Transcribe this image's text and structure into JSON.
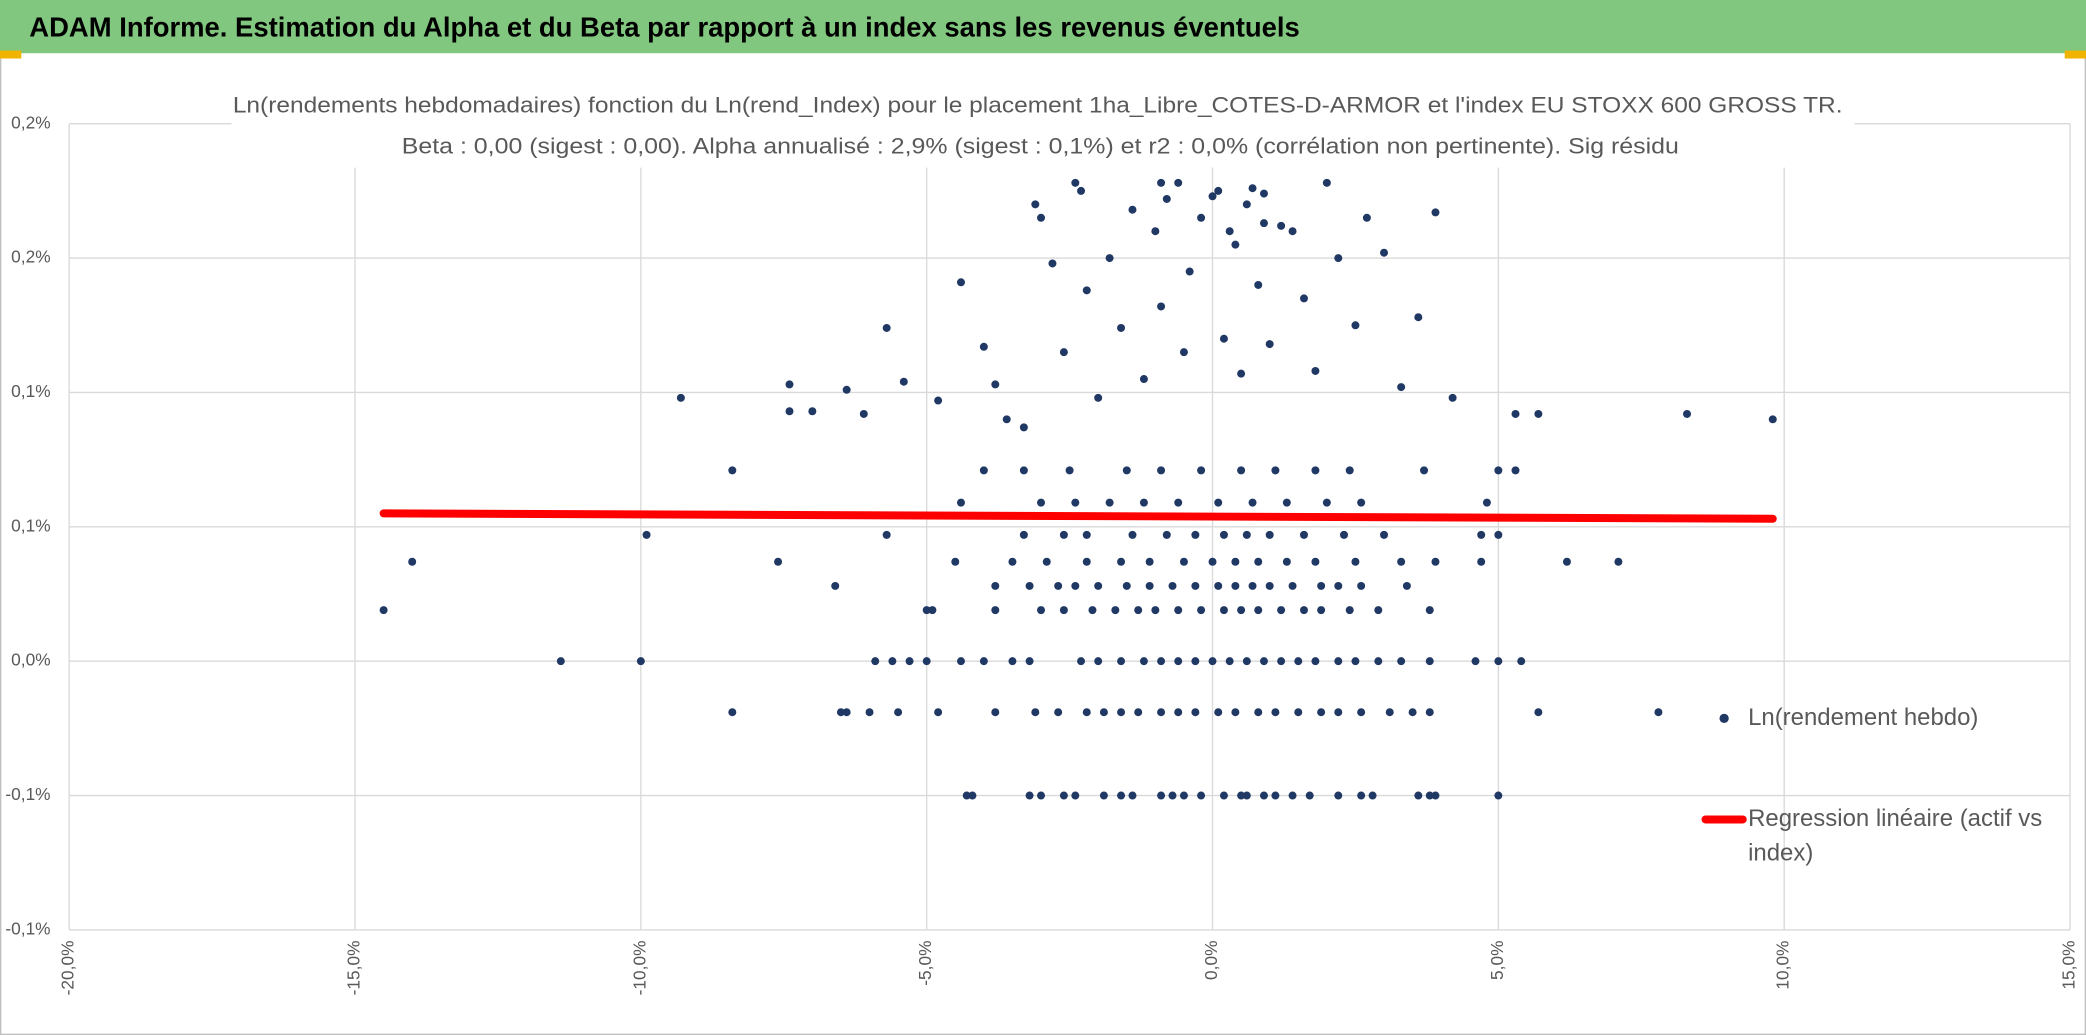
{
  "header": {
    "title": "ADAM Informe. Estimation du Alpha et du Beta par rapport à un index sans les revenus éventuels"
  },
  "chart_data": {
    "type": "scatter",
    "title": "Ln(rendements hebdomadaires) fonction du Ln(rend_Index) pour le placement 1ha_Libre_COTES-D-ARMOR et l'index EU STOXX 600 GROSS TR.",
    "subtitle": "Beta : 0,00 (sigest : 0,00). Alpha annualisé : 2,9% (sigest : 0,1%) et r2 : 0,0% (corrélation non pertinente). Sig résidu",
    "xlim": [
      -20,
      15
    ],
    "xticks": [
      {
        "value": -20,
        "label": "-20,0%"
      },
      {
        "value": -15,
        "label": "-15,0%"
      },
      {
        "value": -10,
        "label": "-10,0%"
      },
      {
        "value": -5,
        "label": "-5,0%"
      },
      {
        "value": 0,
        "label": "0,0%"
      },
      {
        "value": 5,
        "label": "5,0%"
      },
      {
        "value": 10,
        "label": "10,0%"
      },
      {
        "value": 15,
        "label": "15,0%"
      }
    ],
    "ylim": [
      -0.1,
      0.2
    ],
    "yticks": [
      {
        "value": -0.1,
        "label": "-0,1%"
      },
      {
        "value": -0.05,
        "label": "-0,1%"
      },
      {
        "value": 0,
        "label": "0,0%"
      },
      {
        "value": 0.05,
        "label": "0,1%"
      },
      {
        "value": 0.1,
        "label": "0,1%"
      },
      {
        "value": 0.15,
        "label": "0,2%"
      },
      {
        "value": 0.2,
        "label": "0,2%"
      }
    ],
    "grid": true,
    "legend": "right",
    "series": [
      {
        "name": "Ln(rendement hebdo)",
        "color": "#203864",
        "x": [
          -4.3,
          -4.2,
          -3.2,
          -3.0,
          -2.6,
          -2.4,
          -1.9,
          -1.6,
          -1.4,
          -0.9,
          -0.7,
          -0.5,
          -0.2,
          0.2,
          0.5,
          0.6,
          0.9,
          1.1,
          1.4,
          1.7,
          2.2,
          2.6,
          2.8,
          3.6,
          3.8,
          3.9,
          5.0,
          -8.4,
          -6.5,
          -6.4,
          -6.0,
          -5.5,
          -4.8,
          -3.8,
          -3.1,
          -2.7,
          -2.2,
          -1.9,
          -1.6,
          -1.3,
          -0.9,
          -0.6,
          -0.3,
          0.1,
          0.4,
          0.8,
          1.1,
          1.5,
          1.9,
          2.2,
          2.6,
          3.1,
          3.5,
          3.8,
          5.7,
          7.8,
          -11.4,
          -10.0,
          -5.9,
          -5.6,
          -5.3,
          -5.0,
          -4.4,
          -4.0,
          -3.5,
          -3.2,
          -2.3,
          -2.0,
          -1.6,
          -1.2,
          -0.9,
          -0.6,
          -0.3,
          0.0,
          0.3,
          0.6,
          0.9,
          1.2,
          1.5,
          1.8,
          2.2,
          2.5,
          2.9,
          3.3,
          3.8,
          4.6,
          5.0,
          5.4,
          -14.5,
          -5.0,
          -4.9,
          -3.8,
          -3.0,
          -2.6,
          -2.1,
          -1.7,
          -1.3,
          -1.0,
          -0.6,
          -0.2,
          0.2,
          0.5,
          0.8,
          1.2,
          1.6,
          1.9,
          2.4,
          2.9,
          3.8,
          -6.6,
          -3.8,
          -3.2,
          -2.7,
          -2.4,
          -2.0,
          -1.5,
          -1.1,
          -0.7,
          -0.3,
          0.1,
          0.4,
          0.7,
          1.0,
          1.4,
          1.9,
          2.2,
          2.6,
          3.4,
          -14.0,
          -7.6,
          -4.5,
          -3.5,
          -2.9,
          -2.2,
          -1.6,
          -1.1,
          -0.5,
          0.0,
          0.4,
          0.8,
          1.3,
          1.8,
          2.5,
          3.3,
          3.9,
          4.7,
          6.2,
          7.1,
          -9.9,
          -5.7,
          -3.3,
          -2.6,
          -2.2,
          -1.4,
          -0.8,
          -0.3,
          0.2,
          0.6,
          1.0,
          1.6,
          2.3,
          3.0,
          4.7,
          5.0,
          -4.4,
          -3.0,
          -2.4,
          -1.8,
          -1.2,
          -0.6,
          0.1,
          0.7,
          1.3,
          2.0,
          2.6,
          4.8,
          -8.4,
          -4.0,
          -3.3,
          -2.5,
          -1.5,
          -0.9,
          -0.2,
          0.5,
          1.1,
          1.8,
          2.4,
          3.7,
          5.0,
          5.3,
          -9.3,
          -7.4,
          -7.4,
          -7.0,
          -6.4,
          -6.1,
          -5.7,
          -5.4,
          -4.8,
          -4.4,
          -4.0,
          -3.8,
          -3.6,
          -3.3,
          -3.0,
          -2.8,
          -2.6,
          -2.3,
          -2.2,
          -2.0,
          -1.8,
          -1.6,
          -1.4,
          -1.2,
          -1.0,
          -0.9,
          -0.8,
          -0.6,
          -0.5,
          -0.4,
          -0.2,
          0.0,
          0.1,
          0.2,
          0.3,
          0.4,
          0.5,
          0.6,
          0.7,
          0.8,
          0.9,
          1.0,
          1.2,
          1.4,
          1.6,
          1.8,
          2.0,
          2.2,
          2.5,
          2.7,
          3.0,
          3.3,
          3.6,
          3.9,
          4.2,
          5.3,
          5.7,
          8.3,
          9.8,
          -3.1,
          -2.4,
          0.9,
          -0.9
        ],
        "values": [
          -0.05,
          -0.05,
          -0.05,
          -0.05,
          -0.05,
          -0.05,
          -0.05,
          -0.05,
          -0.05,
          -0.05,
          -0.05,
          -0.05,
          -0.05,
          -0.05,
          -0.05,
          -0.05,
          -0.05,
          -0.05,
          -0.05,
          -0.05,
          -0.05,
          -0.05,
          -0.05,
          -0.05,
          -0.05,
          -0.05,
          -0.05,
          -0.019,
          -0.019,
          -0.019,
          -0.019,
          -0.019,
          -0.019,
          -0.019,
          -0.019,
          -0.019,
          -0.019,
          -0.019,
          -0.019,
          -0.019,
          -0.019,
          -0.019,
          -0.019,
          -0.019,
          -0.019,
          -0.019,
          -0.019,
          -0.019,
          -0.019,
          -0.019,
          -0.019,
          -0.019,
          -0.019,
          -0.019,
          -0.019,
          -0.019,
          0,
          0,
          0,
          0,
          0,
          0,
          0,
          0,
          0,
          0,
          0,
          0,
          0,
          0,
          0,
          0,
          0,
          0,
          0,
          0,
          0,
          0,
          0,
          0,
          0,
          0,
          0,
          0,
          0,
          0,
          0,
          0,
          0.019,
          0.019,
          0.019,
          0.019,
          0.019,
          0.019,
          0.019,
          0.019,
          0.019,
          0.019,
          0.019,
          0.019,
          0.019,
          0.019,
          0.019,
          0.019,
          0.019,
          0.019,
          0.019,
          0.019,
          0.019,
          0.028,
          0.028,
          0.028,
          0.028,
          0.028,
          0.028,
          0.028,
          0.028,
          0.028,
          0.028,
          0.028,
          0.028,
          0.028,
          0.028,
          0.028,
          0.028,
          0.028,
          0.028,
          0.028,
          0.037,
          0.037,
          0.037,
          0.037,
          0.037,
          0.037,
          0.037,
          0.037,
          0.037,
          0.037,
          0.037,
          0.037,
          0.037,
          0.037,
          0.037,
          0.037,
          0.037,
          0.037,
          0.037,
          0.037,
          0.047,
          0.047,
          0.047,
          0.047,
          0.047,
          0.047,
          0.047,
          0.047,
          0.047,
          0.047,
          0.047,
          0.047,
          0.047,
          0.047,
          0.047,
          0.047,
          0.059,
          0.059,
          0.059,
          0.059,
          0.059,
          0.059,
          0.059,
          0.059,
          0.059,
          0.059,
          0.059,
          0.059,
          0.071,
          0.071,
          0.071,
          0.071,
          0.071,
          0.071,
          0.071,
          0.071,
          0.071,
          0.071,
          0.071,
          0.071,
          0.071,
          0.071,
          0.098,
          0.103,
          0.093,
          0.093,
          0.101,
          0.092,
          0.124,
          0.104,
          0.097,
          0.141,
          0.117,
          0.103,
          0.09,
          0.087,
          0.165,
          0.148,
          0.115,
          0.175,
          0.138,
          0.098,
          0.15,
          0.124,
          0.168,
          0.105,
          0.16,
          0.132,
          0.172,
          0.178,
          0.115,
          0.145,
          0.165,
          0.173,
          0.175,
          0.12,
          0.16,
          0.155,
          0.107,
          0.17,
          0.176,
          0.14,
          0.163,
          0.118,
          0.162,
          0.16,
          0.135,
          0.108,
          0.178,
          0.15,
          0.125,
          0.165,
          0.152,
          0.102,
          0.128,
          0.167,
          0.098,
          0.092,
          0.092,
          0.092,
          0.09,
          0.17,
          0.178,
          0.174,
          0.178
        ]
      },
      {
        "name": "Regression linéaire (actif vs index)",
        "color": "#ff0000",
        "type": "line",
        "x": [
          -14.5,
          9.8
        ],
        "values": [
          0.055,
          0.053
        ]
      }
    ]
  }
}
